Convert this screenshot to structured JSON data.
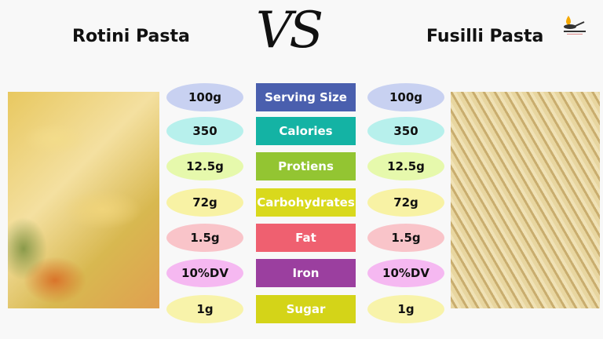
{
  "left_title": "Rotini Pasta",
  "right_title": "Fusilli Pasta",
  "vs": "VS",
  "rows": [
    {
      "label": "Serving Size",
      "left": "100g",
      "right": "100g",
      "box_color": "#4a5fae",
      "pill_color": "#c8d1f1"
    },
    {
      "label": "Calories",
      "left": "350",
      "right": "350",
      "box_color": "#14b3a4",
      "pill_color": "#b7f0ec"
    },
    {
      "label": "Protiens",
      "left": "12.5g",
      "right": "12.5g",
      "box_color": "#93c532",
      "pill_color": "#e6f9ac"
    },
    {
      "label": "Carbohydrates",
      "left": "72g",
      "right": "72g",
      "box_color": "#d9d91c",
      "pill_color": "#f8f2a4"
    },
    {
      "label": "Fat",
      "left": "1.5g",
      "right": "1.5g",
      "box_color": "#ef6070",
      "pill_color": "#f9c4c9"
    },
    {
      "label": "Iron",
      "left": "10%DV",
      "right": "10%DV",
      "box_color": "#9b3f9f",
      "pill_color": "#f5b8f1"
    },
    {
      "label": "Sugar",
      "left": "1g",
      "right": "1g",
      "box_color": "#d4d418",
      "pill_color": "#f8f3aa"
    }
  ]
}
